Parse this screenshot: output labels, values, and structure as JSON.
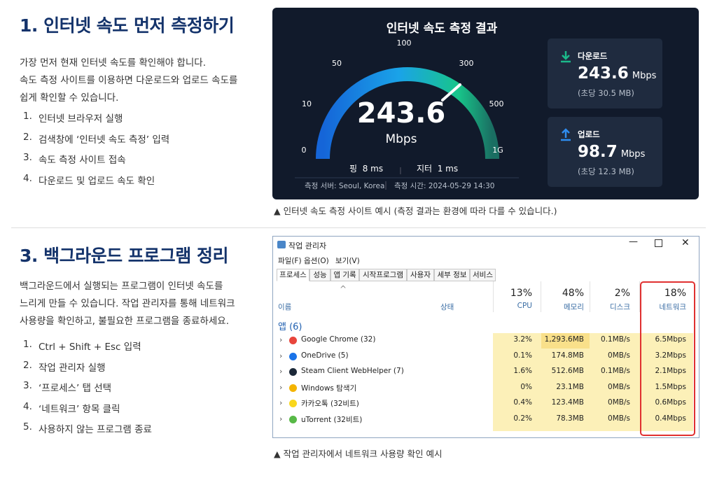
{
  "sections": [
    {
      "title": "1. 인터넷 속도 먼저 측정하기",
      "paragraph": [
        "가장 먼저 현재 인터넷 속도를 확인해야 합니다.",
        "속도 측정 사이트를 이용하면 다운로드와 업로드 속도를",
        "쉽게 확인할 수 있습니다."
      ],
      "steps": [
        {
          "num": "1.",
          "text": "인터넷 브라우저 실행"
        },
        {
          "num": "2.",
          "text": "검색창에 ‘인터넷 속도 측정’ 입력"
        },
        {
          "num": "3.",
          "text": "속도 측정 사이트 접속"
        },
        {
          "num": "4.",
          "text": "다운로드 및 업로드 속도 확인"
        }
      ]
    },
    {
      "title": "3. 백그라운드 프로그램 정리",
      "paragraph": [
        "백그라운드에서 실행되는 프로그램이 인터넷 속도를",
        "느리게 만들 수 있습니다. 작업 관리자를 통해 네트워크",
        "사용량을 확인하고, 불필요한 프로그램을 종료하세요."
      ],
      "steps": [
        {
          "num": "1.",
          "text": "Ctrl + Shift + Esc 입력"
        },
        {
          "num": "2.",
          "text": "작업 관리자 실행"
        },
        {
          "num": "3.",
          "text": "‘프로세스’ 탭 선택"
        },
        {
          "num": "4.",
          "text": "‘네트워크’ 항목 클릭"
        },
        {
          "num": "5.",
          "text": "사용하지 않는 프로그램 종료"
        }
      ]
    }
  ],
  "speed_test": {
    "title": "인터넷 속도 측정 결과",
    "gauge_ticks": [
      "0",
      "10",
      "50",
      "100",
      "300",
      "500",
      "1G"
    ],
    "value": "243.6",
    "unit": "Mbps",
    "ping_label": "핑",
    "ping": "8 ms",
    "jitter_label": "지터",
    "jitter": "1 ms",
    "server": "측정 서버: Seoul, Korea",
    "time": "측정 시간: 2024-05-29 14:30",
    "download": {
      "label": "다운로드",
      "value": "243.6",
      "unit": "Mbps",
      "sub": "(초당 30.5 MB)"
    },
    "upload": {
      "label": "업로드",
      "value": "98.7",
      "unit": "Mbps",
      "sub": "(초당 12.3 MB)"
    },
    "caption": "▲ 인터넷 속도 측정 사이트 예시 (측정 결과는 환경에 따라 다를 수 있습니다.)"
  },
  "task_manager": {
    "title": "작업 관리자",
    "menu": [
      "파일(F)",
      "옵션(O)",
      "보기(V)"
    ],
    "tabs": [
      "프로세스",
      "성능",
      "앱 기록",
      "시작프로그램",
      "사용자",
      "세부 정보",
      "서비스"
    ],
    "name_header": "이름",
    "status_header": "상태",
    "columns": [
      {
        "pct": "13%",
        "name": "CPU"
      },
      {
        "pct": "48%",
        "name": "메모리"
      },
      {
        "pct": "2%",
        "name": "디스크"
      },
      {
        "pct": "18%",
        "name": "네트워크"
      }
    ],
    "group": "앱 (6)",
    "rows": [
      {
        "name": "Google Chrome (32)",
        "cpu": "3.2%",
        "memory": "1,293.6MB",
        "disk": "0.1MB/s",
        "network": "6.5Mbps"
      },
      {
        "name": "OneDrive (5)",
        "cpu": "0.1%",
        "memory": "174.8MB",
        "disk": "0MB/s",
        "network": "3.2Mbps"
      },
      {
        "name": "Steam Client WebHelper (7)",
        "cpu": "1.6%",
        "memory": "512.6MB",
        "disk": "0.1MB/s",
        "network": "2.1Mbps"
      },
      {
        "name": "Windows 탐색기",
        "cpu": "0%",
        "memory": "23.1MB",
        "disk": "0MB/s",
        "network": "1.5Mbps"
      },
      {
        "name": "카카오톡 (32비트)",
        "cpu": "0.4%",
        "memory": "123.4MB",
        "disk": "0MB/s",
        "network": "0.6Mbps"
      },
      {
        "name": "uTorrent (32비트)",
        "cpu": "0.2%",
        "memory": "78.3MB",
        "disk": "0MB/s",
        "network": "0.4Mbps"
      }
    ],
    "caption": "▲ 작업 관리자에서 네트워크 사용량 확인 예시"
  }
}
